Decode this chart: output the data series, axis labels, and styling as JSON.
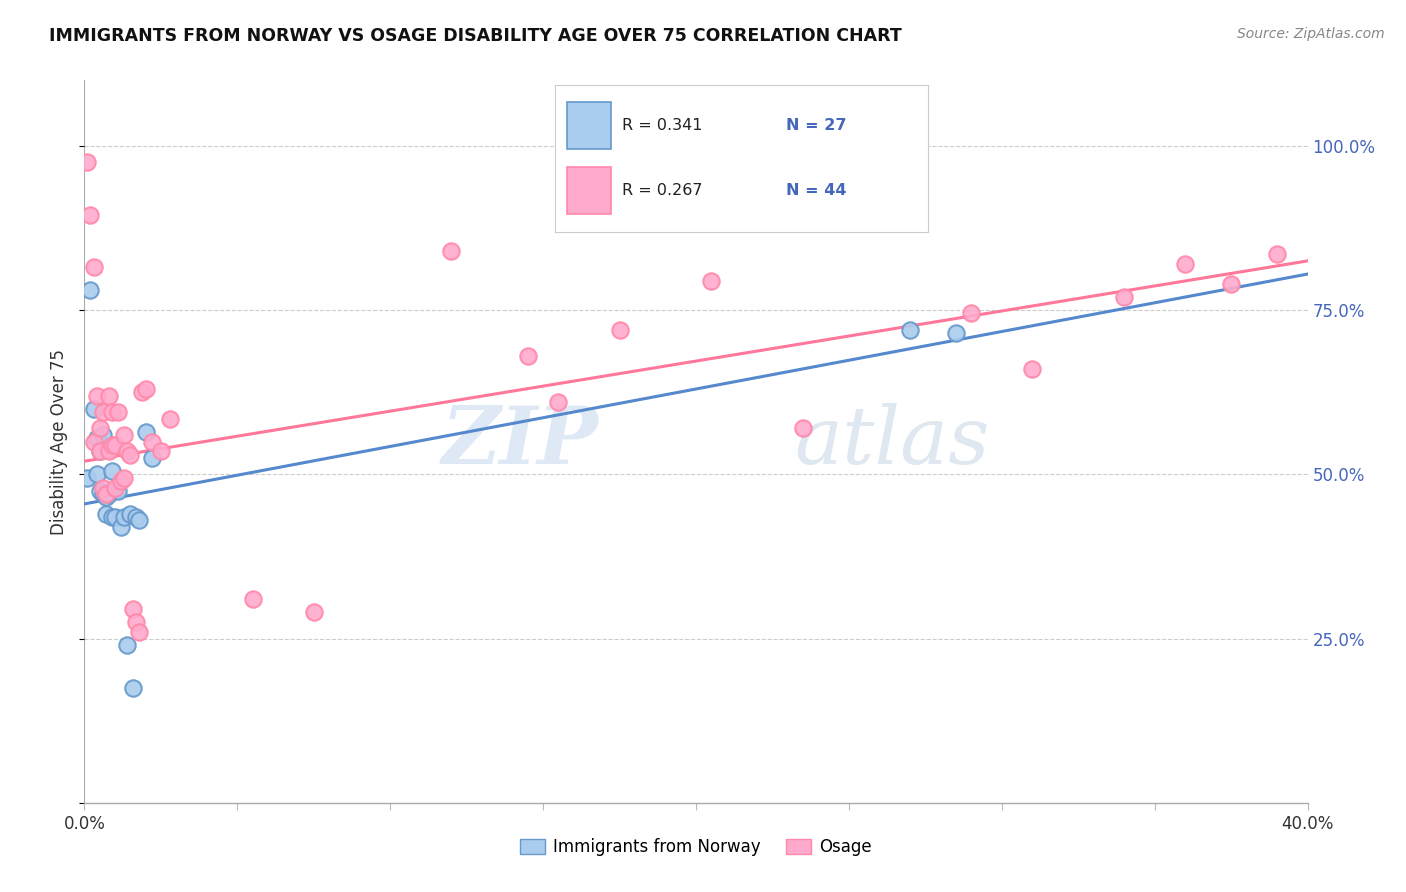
{
  "title": "IMMIGRANTS FROM NORWAY VS OSAGE DISABILITY AGE OVER 75 CORRELATION CHART",
  "source": "Source: ZipAtlas.com",
  "ylabel": "Disability Age Over 75",
  "xlim": [
    0.0,
    0.4
  ],
  "ylim": [
    0.0,
    1.1
  ],
  "ytick_vals": [
    0.0,
    0.25,
    0.5,
    0.75,
    1.0
  ],
  "ytick_labels": [
    "",
    "25.0%",
    "50.0%",
    "75.0%",
    "100.0%"
  ],
  "xtick_positions": [
    0.0,
    0.05,
    0.1,
    0.15,
    0.2,
    0.25,
    0.3,
    0.35,
    0.4
  ],
  "xtick_labels": [
    "0.0%",
    "",
    "",
    "",
    "",
    "",
    "",
    "",
    "40.0%"
  ],
  "legend_blue_r": "R = 0.341",
  "legend_blue_n": "N = 27",
  "legend_pink_r": "R = 0.267",
  "legend_pink_n": "N = 44",
  "legend_blue_label": "Immigrants from Norway",
  "legend_pink_label": "Osage",
  "blue_fill": "#AACCEE",
  "blue_edge": "#6699CC",
  "pink_fill": "#FFAACC",
  "pink_edge": "#FF88AA",
  "blue_line": "#5588CC",
  "pink_line": "#FF7799",
  "text_blue": "#4466BB",
  "text_pink": "#EE4488",
  "watermark_color": "#D8E8F5",
  "background_color": "#FFFFFF",
  "grid_color": "#CCCCCC",
  "norway_x": [
    0.001,
    0.002,
    0.003,
    0.004,
    0.004,
    0.005,
    0.005,
    0.006,
    0.006,
    0.007,
    0.007,
    0.008,
    0.009,
    0.009,
    0.01,
    0.011,
    0.012,
    0.013,
    0.014,
    0.015,
    0.016,
    0.017,
    0.018,
    0.02,
    0.022,
    0.27,
    0.285
  ],
  "norway_y": [
    0.495,
    0.78,
    0.6,
    0.555,
    0.5,
    0.535,
    0.475,
    0.56,
    0.47,
    0.465,
    0.44,
    0.47,
    0.435,
    0.505,
    0.435,
    0.475,
    0.42,
    0.435,
    0.24,
    0.44,
    0.175,
    0.435,
    0.43,
    0.565,
    0.525,
    0.72,
    0.715
  ],
  "osage_x": [
    0.001,
    0.002,
    0.003,
    0.003,
    0.004,
    0.005,
    0.005,
    0.006,
    0.006,
    0.007,
    0.008,
    0.008,
    0.009,
    0.009,
    0.01,
    0.01,
    0.011,
    0.012,
    0.013,
    0.013,
    0.014,
    0.015,
    0.016,
    0.017,
    0.018,
    0.019,
    0.02,
    0.022,
    0.025,
    0.028,
    0.055,
    0.075,
    0.12,
    0.145,
    0.155,
    0.175,
    0.205,
    0.235,
    0.29,
    0.31,
    0.34,
    0.36,
    0.375,
    0.39
  ],
  "osage_y": [
    0.975,
    0.895,
    0.55,
    0.815,
    0.62,
    0.535,
    0.57,
    0.48,
    0.595,
    0.47,
    0.535,
    0.62,
    0.545,
    0.595,
    0.48,
    0.545,
    0.595,
    0.49,
    0.56,
    0.495,
    0.535,
    0.53,
    0.295,
    0.275,
    0.26,
    0.625,
    0.63,
    0.55,
    0.535,
    0.585,
    0.31,
    0.29,
    0.84,
    0.68,
    0.61,
    0.72,
    0.795,
    0.57,
    0.745,
    0.66,
    0.77,
    0.82,
    0.79,
    0.835
  ],
  "line_blue_x0": 0.0,
  "line_blue_y0": 0.455,
  "line_blue_x1": 0.4,
  "line_blue_y1": 0.805,
  "line_pink_x0": 0.0,
  "line_pink_y0": 0.52,
  "line_pink_x1": 0.4,
  "line_pink_y1": 0.825
}
